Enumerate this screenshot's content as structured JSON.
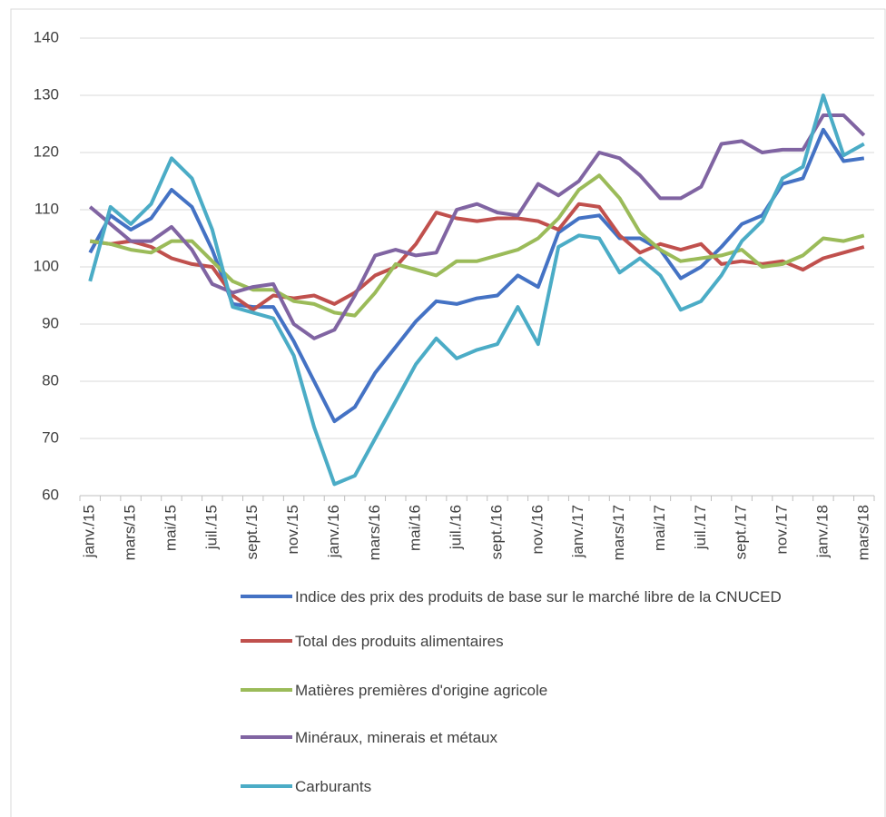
{
  "chart_data": {
    "type": "line",
    "categories": [
      "janv./15",
      null,
      "mars/15",
      null,
      "mai/15",
      null,
      "juil./15",
      null,
      "sept./15",
      null,
      "nov./15",
      null,
      "janv./16",
      null,
      "mars/16",
      null,
      "mai/16",
      null,
      "juil./16",
      null,
      "sept./16",
      null,
      "nov./16",
      null,
      "janv./17",
      null,
      "mars/17",
      null,
      "mai/17",
      null,
      "juil./17",
      null,
      "sept./17",
      null,
      "nov./17",
      null,
      "janv./18",
      null,
      "mars/18"
    ],
    "series": [
      {
        "name": "Indice des prix des produits de base sur le marché libre de la CNUCED",
        "color": "#4472c4",
        "values": [
          102.5,
          109,
          106.5,
          108.5,
          113.5,
          110.5,
          103,
          93.5,
          93,
          93,
          87,
          80,
          73,
          75.5,
          81.5,
          86,
          90.5,
          94,
          93.5,
          94.5,
          95,
          98.5,
          96.5,
          106,
          108.5,
          109,
          105,
          105,
          103,
          98,
          100,
          103.5,
          107.5,
          109,
          114.5,
          115.5,
          124,
          118.5,
          119
        ]
      },
      {
        "name": "Total des produits alimentaires",
        "color": "#c0504d",
        "values": [
          104.5,
          104,
          104.5,
          103.5,
          101.5,
          100.5,
          100,
          95,
          92.5,
          95,
          94.5,
          95,
          93.5,
          95.5,
          98.5,
          100,
          104,
          109.5,
          108.5,
          108,
          108.5,
          108.5,
          108,
          106.5,
          111,
          110.5,
          105.5,
          102.5,
          104,
          103,
          104,
          100.5,
          101,
          100.5,
          101,
          99.5,
          101.5,
          102.5,
          103.5
        ]
      },
      {
        "name": "Matières premières d'origine agricole",
        "color": "#9bbb59",
        "values": [
          104.5,
          104,
          103,
          102.5,
          104.5,
          104.5,
          101,
          97.5,
          96,
          96,
          94,
          93.5,
          92,
          91.5,
          95.5,
          100.5,
          99.5,
          98.5,
          101,
          101,
          102,
          103,
          105,
          108.5,
          113.5,
          116,
          112,
          106,
          103,
          101,
          101.5,
          102,
          103,
          100,
          100.5,
          102,
          105,
          104.5,
          105.5
        ]
      },
      {
        "name": "Minéraux, minerais et métaux",
        "color": "#8064a2",
        "values": [
          110.5,
          107.5,
          104.5,
          104.5,
          107,
          103,
          97,
          95.5,
          96.5,
          97,
          90,
          87.5,
          89,
          95,
          102,
          103,
          102,
          102.5,
          110,
          111,
          109.5,
          109,
          114.5,
          112.5,
          115,
          120,
          119,
          116,
          112,
          112,
          114,
          121.5,
          122,
          120,
          120.5,
          120.5,
          126.5,
          126.5,
          123
        ]
      },
      {
        "name": "Carburants",
        "color": "#4bacc6",
        "values": [
          97.5,
          110.5,
          107.5,
          111,
          119,
          115.5,
          106.5,
          93,
          92,
          91,
          84.5,
          72,
          62,
          63.5,
          70,
          76.5,
          83,
          87.5,
          84,
          85.5,
          86.5,
          93,
          86.5,
          103.5,
          105.5,
          105,
          99,
          101.5,
          98.5,
          92.5,
          94,
          98.5,
          104.5,
          108,
          115.5,
          117.5,
          130,
          119.5,
          121.5
        ]
      }
    ],
    "ylim": [
      60,
      140
    ],
    "yticks": [
      60,
      70,
      80,
      90,
      100,
      110,
      120,
      130,
      140
    ],
    "grid": true
  }
}
